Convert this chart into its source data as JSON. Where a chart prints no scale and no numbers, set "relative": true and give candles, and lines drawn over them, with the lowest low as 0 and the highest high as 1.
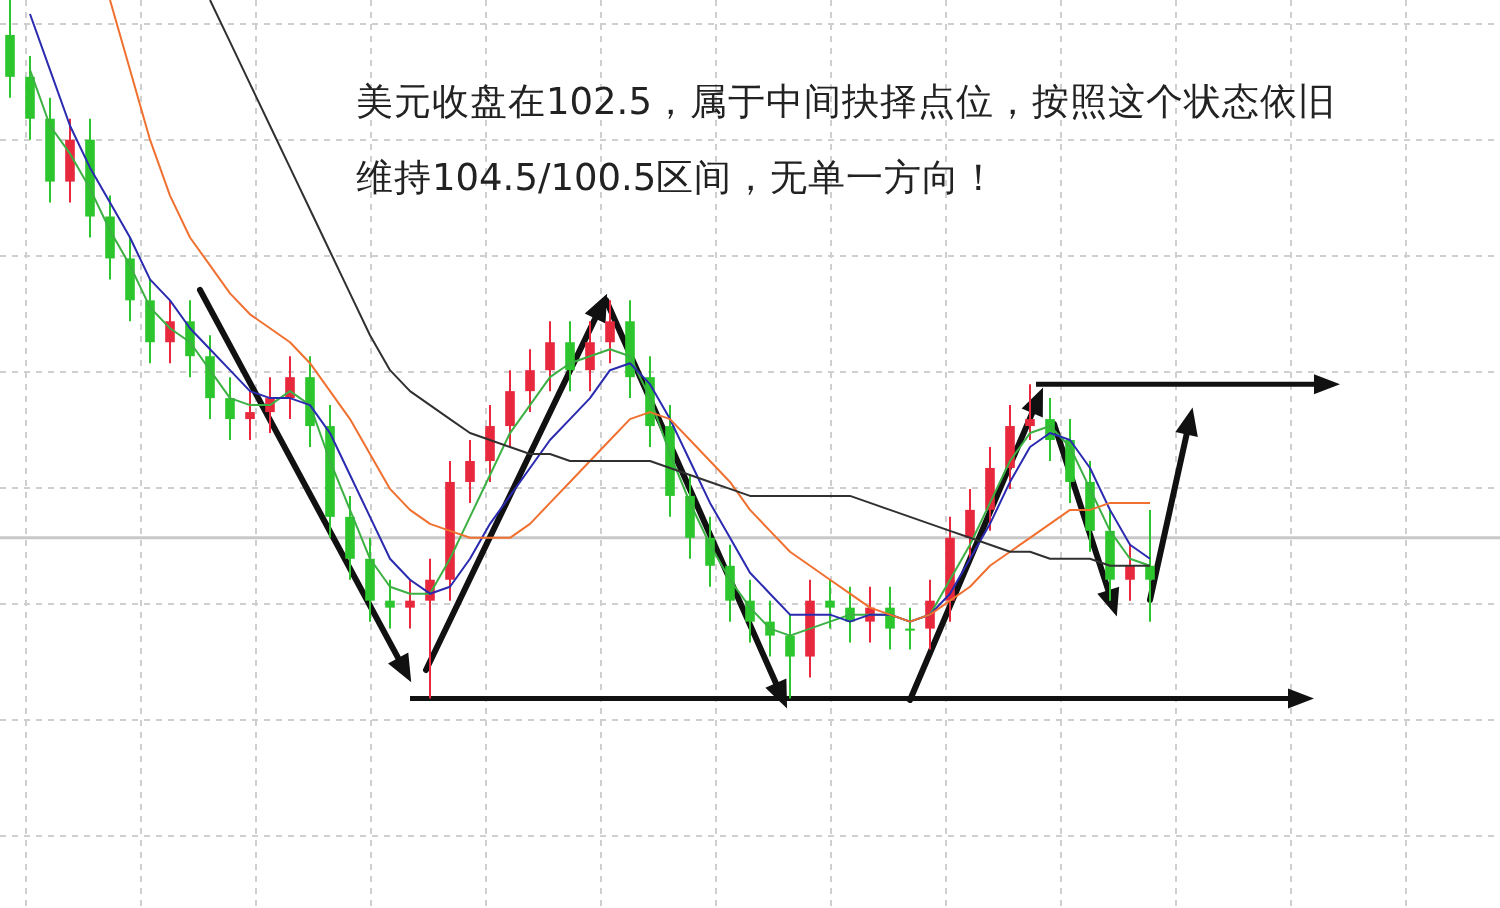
{
  "chart_data": {
    "type": "candlestick",
    "relative": true,
    "grid": true,
    "categories": [
      null,
      null,
      null,
      null,
      null,
      null,
      null,
      null,
      null,
      null,
      null,
      null,
      null,
      null,
      null,
      null,
      null,
      null,
      null,
      null,
      null,
      null,
      null,
      null,
      null,
      null,
      null,
      null,
      null,
      null,
      null,
      null,
      null,
      null,
      null,
      null,
      null,
      null,
      null,
      null,
      null,
      null,
      null,
      null,
      null,
      null,
      null,
      null,
      null,
      null,
      null,
      null,
      null,
      null,
      null,
      null,
      null,
      null
    ],
    "ohlc": [
      [
        0.95,
        1,
        0.86,
        0.89
      ],
      [
        0.89,
        0.92,
        0.8,
        0.83
      ],
      [
        0.83,
        0.86,
        0.71,
        0.74
      ],
      [
        0.74,
        0.83,
        0.71,
        0.8
      ],
      [
        0.8,
        0.83,
        0.66,
        0.69
      ],
      [
        0.69,
        0.72,
        0.6,
        0.63
      ],
      [
        0.63,
        0.66,
        0.54,
        0.57
      ],
      [
        0.57,
        0.6,
        0.48,
        0.51
      ],
      [
        0.51,
        0.57,
        0.48,
        0.54
      ],
      [
        0.54,
        0.57,
        0.46,
        0.49
      ],
      [
        0.49,
        0.52,
        0.4,
        0.43
      ],
      [
        0.43,
        0.46,
        0.37,
        0.4
      ],
      [
        0.4,
        0.44,
        0.37,
        0.41
      ],
      [
        0.41,
        0.46,
        0.38,
        0.43
      ],
      [
        0.43,
        0.49,
        0.4,
        0.46
      ],
      [
        0.46,
        0.49,
        0.36,
        0.39
      ],
      [
        0.39,
        0.42,
        0.23,
        0.26
      ],
      [
        0.26,
        0.29,
        0.17,
        0.2
      ],
      [
        0.2,
        0.23,
        0.11,
        0.14
      ],
      [
        0.14,
        0.17,
        0.1,
        0.13
      ],
      [
        0.13,
        0.17,
        0.1,
        0.14
      ],
      [
        0.14,
        0.2,
        0,
        0.17
      ],
      [
        0.17,
        0.34,
        0.14,
        0.31
      ],
      [
        0.31,
        0.37,
        0.28,
        0.34
      ],
      [
        0.34,
        0.42,
        0.31,
        0.39
      ],
      [
        0.39,
        0.47,
        0.36,
        0.44
      ],
      [
        0.44,
        0.5,
        0.41,
        0.47
      ],
      [
        0.47,
        0.54,
        0.44,
        0.51
      ],
      [
        0.51,
        0.54,
        0.44,
        0.47
      ],
      [
        0.47,
        0.54,
        0.44,
        0.51
      ],
      [
        0.51,
        0.57,
        0.48,
        0.54
      ],
      [
        0.54,
        0.57,
        0.43,
        0.46
      ],
      [
        0.46,
        0.49,
        0.36,
        0.39
      ],
      [
        0.39,
        0.42,
        0.26,
        0.29
      ],
      [
        0.29,
        0.32,
        0.2,
        0.23
      ],
      [
        0.23,
        0.26,
        0.16,
        0.19
      ],
      [
        0.19,
        0.22,
        0.11,
        0.14
      ],
      [
        0.14,
        0.17,
        0.08,
        0.11
      ],
      [
        0.11,
        0.14,
        0.06,
        0.09
      ],
      [
        0.09,
        0.12,
        0,
        0.06
      ],
      [
        0.06,
        0.17,
        0.03,
        0.14
      ],
      [
        0.14,
        0.17,
        0.1,
        0.13
      ],
      [
        0.13,
        0.16,
        0.08,
        0.11
      ],
      [
        0.11,
        0.16,
        0.08,
        0.13
      ],
      [
        0.13,
        0.16,
        0.07,
        0.1
      ],
      [
        0.1,
        0.13,
        0.07,
        0.1
      ],
      [
        0.1,
        0.17,
        0.07,
        0.14
      ],
      [
        0.14,
        0.26,
        0.11,
        0.23
      ],
      [
        0.23,
        0.3,
        0.2,
        0.27
      ],
      [
        0.27,
        0.36,
        0.24,
        0.33
      ],
      [
        0.33,
        0.42,
        0.3,
        0.39
      ],
      [
        0.39,
        0.45,
        0.37,
        0.4
      ],
      [
        0.4,
        0.43,
        0.34,
        0.37
      ],
      [
        0.37,
        0.4,
        0.28,
        0.31
      ],
      [
        0.31,
        0.34,
        0.21,
        0.24
      ],
      [
        0.24,
        0.27,
        0.14,
        0.17
      ],
      [
        0.17,
        0.22,
        0.14,
        0.19
      ],
      [
        0.19,
        0.27,
        0.11,
        0.17
      ]
    ],
    "colors": [
      "#2dc52d",
      "#2dc52d",
      "#2dc52d",
      "#e8283c",
      "#2dc52d",
      "#2dc52d",
      "#2dc52d",
      "#2dc52d",
      "#e8283c",
      "#2dc52d",
      "#2dc52d",
      "#2dc52d",
      "#e8283c",
      "#e8283c",
      "#e8283c",
      "#2dc52d",
      "#2dc52d",
      "#2dc52d",
      "#2dc52d",
      "#2dc52d",
      "#e8283c",
      "#e8283c",
      "#e8283c",
      "#e8283c",
      "#e8283c",
      "#e8283c",
      "#e8283c",
      "#e8283c",
      "#2dc52d",
      "#e8283c",
      "#e8283c",
      "#2dc52d",
      "#2dc52d",
      "#2dc52d",
      "#2dc52d",
      "#2dc52d",
      "#2dc52d",
      "#2dc52d",
      "#2dc52d",
      "#2dc52d",
      "#e8283c",
      "#2dc52d",
      "#2dc52d",
      "#e8283c",
      "#2dc52d",
      "#2dc52d",
      "#e8283c",
      "#e8283c",
      "#e8283c",
      "#e8283c",
      "#e8283c",
      "#e8283c",
      "#2dc52d",
      "#2dc52d",
      "#2dc52d",
      "#2dc52d",
      "#e8283c",
      "#2dc52d"
    ],
    "series": [
      {
        "type": "line",
        "color": "#3cb043",
        "values": [
          null,
          0.9,
          0.82,
          0.78,
          0.73,
          0.67,
          0.62,
          0.56,
          0.53,
          0.51,
          0.47,
          0.43,
          0.42,
          0.42,
          0.44,
          0.42,
          0.34,
          0.27,
          0.2,
          0.16,
          0.15,
          0.15,
          0.2,
          0.26,
          0.32,
          0.38,
          0.42,
          0.46,
          0.48,
          0.49,
          0.5,
          0.49,
          0.43,
          0.35,
          0.28,
          0.22,
          0.17,
          0.13,
          0.1,
          0.09,
          0.1,
          0.11,
          0.12,
          0.12,
          0.12,
          0.11,
          0.12,
          0.17,
          0.22,
          0.28,
          0.34,
          0.38,
          0.39,
          0.36,
          0.3,
          0.24,
          0.2,
          0.19
        ]
      },
      {
        "type": "line",
        "color": "#2a2ab0",
        "values": [
          null,
          0.98,
          0.9,
          0.82,
          0.76,
          0.71,
          0.66,
          0.6,
          0.57,
          0.53,
          0.5,
          0.47,
          0.44,
          0.43,
          0.43,
          0.42,
          0.38,
          0.32,
          0.26,
          0.2,
          0.17,
          0.15,
          0.16,
          0.2,
          0.25,
          0.29,
          0.33,
          0.37,
          0.4,
          0.43,
          0.47,
          0.48,
          0.45,
          0.4,
          0.34,
          0.28,
          0.23,
          0.18,
          0.15,
          0.12,
          0.12,
          0.12,
          0.11,
          0.12,
          0.12,
          0.11,
          0.12,
          0.15,
          0.2,
          0.25,
          0.31,
          0.36,
          0.38,
          0.37,
          0.33,
          0.27,
          0.22,
          0.2
        ]
      },
      {
        "type": "line",
        "color": "#f07030",
        "values": [
          null,
          null,
          null,
          null,
          null,
          1,
          0.9,
          0.8,
          0.72,
          0.66,
          0.62,
          0.58,
          0.55,
          0.53,
          0.51,
          0.48,
          0.44,
          0.4,
          0.35,
          0.3,
          0.27,
          0.25,
          0.24,
          0.23,
          0.23,
          0.23,
          0.25,
          0.28,
          0.31,
          0.34,
          0.37,
          0.4,
          0.41,
          0.4,
          0.37,
          0.34,
          0.31,
          0.27,
          0.24,
          0.21,
          0.19,
          0.17,
          0.15,
          0.13,
          0.12,
          0.11,
          0.12,
          0.14,
          0.16,
          0.19,
          0.21,
          0.23,
          0.25,
          0.27,
          0.27,
          0.28,
          0.28,
          0.28
        ]
      },
      {
        "type": "line",
        "color": "#303030",
        "values": [
          null,
          null,
          null,
          null,
          null,
          null,
          null,
          null,
          null,
          null,
          1,
          0.94,
          0.88,
          0.82,
          0.76,
          0.7,
          0.64,
          0.58,
          0.52,
          0.47,
          0.44,
          0.42,
          0.4,
          0.38,
          0.37,
          0.36,
          0.35,
          0.35,
          0.34,
          0.34,
          0.34,
          0.34,
          0.34,
          0.33,
          0.32,
          0.31,
          0.3,
          0.29,
          0.29,
          0.29,
          0.29,
          0.29,
          0.29,
          0.28,
          0.27,
          0.26,
          0.25,
          0.24,
          0.23,
          0.22,
          0.21,
          0.21,
          0.2,
          0.2,
          0.2,
          0.19,
          0.19,
          0.19
        ]
      }
    ],
    "ref_lines": [
      {
        "axis": "y",
        "value": 0.23,
        "color": "#c8c8c8"
      },
      {
        "axis": "y",
        "value": 0,
        "color": "#111111"
      },
      {
        "axis": "y",
        "value": 0.45,
        "color": "#111111"
      }
    ],
    "annotations": [
      "美元收盘在102.5，属于中间抉择点位，按照这个状态依旧维持104.5/100.5区间，无单一方向！"
    ]
  }
}
